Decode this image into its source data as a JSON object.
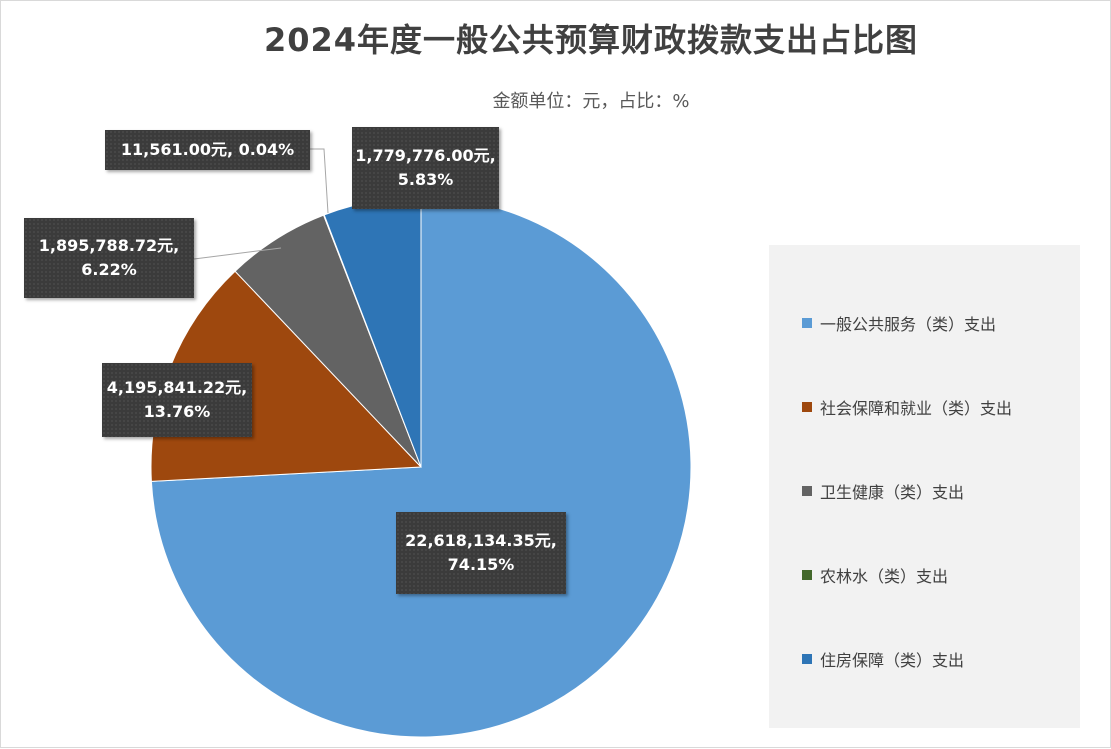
{
  "chart_data": {
    "type": "pie",
    "title": "2024年度一般公共预算财政拨款支出占比图",
    "subtitle": "金额单位：元，占比：%",
    "categories": [
      "一般公共服务（类）支出",
      "社会保障和就业（类）支出",
      "卫生健康（类）支出",
      "农林水（类）支出",
      "住房保障（类）支出"
    ],
    "values": [
      22618134.35,
      4195841.22,
      1895788.72,
      11561.0,
      1779776.0
    ],
    "percents": [
      74.15,
      13.76,
      6.22,
      0.04,
      5.83
    ],
    "colors": [
      "#5b9bd5",
      "#9e480e",
      "#636363",
      "#43682b",
      "#2e75b6"
    ],
    "data_labels": [
      [
        "22,618,134.35元,",
        "74.15%"
      ],
      [
        "4,195,841.22元,",
        "13.76%"
      ],
      [
        "1,895,788.72元,",
        "6.22%"
      ],
      [
        "11,561.00元, 0.04%"
      ],
      [
        "1,779,776.00元,",
        "5.83%"
      ]
    ],
    "legend_placement": "right"
  }
}
